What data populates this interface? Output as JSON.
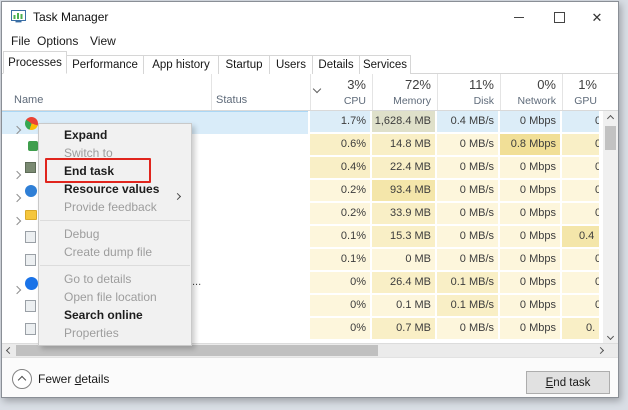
{
  "window": {
    "title": "Task Manager",
    "controls": {
      "minimize": "minimize",
      "maximize": "maximize",
      "close": "close"
    }
  },
  "menubar": {
    "items": [
      "File",
      "Options",
      "View"
    ]
  },
  "tabs": {
    "active": "Processes",
    "items": [
      "Processes",
      "Performance",
      "App history",
      "Startup",
      "Users",
      "Details",
      "Services"
    ]
  },
  "table": {
    "name_header": "Name",
    "status_header": "Status",
    "columns": [
      {
        "pct": "3%",
        "label": "CPU"
      },
      {
        "pct": "72%",
        "label": "Memory"
      },
      {
        "pct": "11%",
        "label": "Disk"
      },
      {
        "pct": "0%",
        "label": "Network"
      },
      {
        "pct": "1%",
        "label": "GPU"
      }
    ],
    "rows": [
      {
        "selected": true,
        "chevron": true,
        "icon": "chrome",
        "cpu": "1.7%",
        "mem": "1,628.4 MB",
        "disk": "0.4 MB/s",
        "net": "0 Mbps",
        "gpu": "0",
        "heat": [
          "hs",
          "hsm",
          "hs",
          "hs",
          "hs"
        ],
        "gpu_clip": "far"
      },
      {
        "selected": false,
        "chevron": false,
        "icon": "green-app",
        "cpu": "0.6%",
        "mem": "14.8 MB",
        "disk": "0 MB/s",
        "net": "0.8 Mbps",
        "gpu": "0",
        "heat": [
          "h1",
          "h1",
          "h0",
          "h3",
          "h1"
        ],
        "gpu_clip": "far"
      },
      {
        "selected": false,
        "chevron": true,
        "icon": "gray-green-app",
        "cpu": "0.4%",
        "mem": "22.4 MB",
        "disk": "0 MB/s",
        "net": "0 Mbps",
        "gpu": "0",
        "heat": [
          "h1",
          "h1",
          "h0",
          "h0",
          "h0"
        ],
        "gpu_clip": "far"
      },
      {
        "selected": false,
        "chevron": true,
        "icon": "blue-app",
        "cpu": "0.2%",
        "mem": "93.4 MB",
        "disk": "0 MB/s",
        "net": "0 Mbps",
        "gpu": "0",
        "heat": [
          "h0",
          "h2",
          "h0",
          "h0",
          "h0"
        ],
        "gpu_clip": "far"
      },
      {
        "selected": false,
        "chevron": true,
        "icon": "yellow-folder",
        "cpu": "0.2%",
        "mem": "33.9 MB",
        "disk": "0 MB/s",
        "net": "0 Mbps",
        "gpu": "0",
        "heat": [
          "h0",
          "h1",
          "h0",
          "h0",
          "h0"
        ],
        "gpu_clip": "far"
      },
      {
        "selected": false,
        "chevron": false,
        "icon": "gray-app",
        "cpu": "0.1%",
        "mem": "15.3 MB",
        "disk": "0 MB/s",
        "net": "0 Mbps",
        "gpu": "0.4",
        "heat": [
          "h0",
          "h1",
          "h0",
          "h0",
          "h2"
        ],
        "gpu_clip": "near"
      },
      {
        "selected": false,
        "chevron": false,
        "icon": "gray-app",
        "cpu": "0.1%",
        "mem": "0 MB",
        "disk": "0 MB/s",
        "net": "0 Mbps",
        "gpu": "0",
        "heat": [
          "h0",
          "h0",
          "h0",
          "h0",
          "h0"
        ],
        "gpu_clip": "far"
      },
      {
        "selected": false,
        "chevron": true,
        "icon": "blue-circle-app",
        "cpu": "0%",
        "mem": "26.4 MB",
        "disk": "0.1 MB/s",
        "net": "0 Mbps",
        "gpu": "0",
        "heat": [
          "h0",
          "h1",
          "h1",
          "h0",
          "h0"
        ],
        "gpu_clip": "far",
        "name_fragment": "..."
      },
      {
        "selected": false,
        "chevron": false,
        "icon": "gray-app",
        "cpu": "0%",
        "mem": "0.1 MB",
        "disk": "0.1 MB/s",
        "net": "0 Mbps",
        "gpu": "0",
        "heat": [
          "h0",
          "h0",
          "h1",
          "h0",
          "h0"
        ],
        "gpu_clip": "far"
      },
      {
        "selected": false,
        "chevron": false,
        "icon": "gray-app",
        "cpu": "0%",
        "mem": "0.7 MB",
        "disk": "0 MB/s",
        "net": "0 Mbps",
        "gpu": "0.",
        "heat": [
          "h0",
          "h1",
          "h0",
          "h0",
          "h1"
        ],
        "gpu_clip": "mid"
      }
    ]
  },
  "context_menu": {
    "items": [
      {
        "label": "Expand",
        "enabled": true,
        "bold": true
      },
      {
        "label": "Switch to",
        "enabled": false
      },
      {
        "label": "End task",
        "enabled": true,
        "bold": true,
        "highlighted": true
      },
      {
        "label": "Resource values",
        "enabled": true,
        "bold": true,
        "submenu": true
      },
      {
        "label": "Provide feedback",
        "enabled": false
      },
      {
        "separator": true
      },
      {
        "label": "Debug",
        "enabled": false
      },
      {
        "label": "Create dump file",
        "enabled": false
      },
      {
        "separator": true
      },
      {
        "label": "Go to details",
        "enabled": false
      },
      {
        "label": "Open file location",
        "enabled": false
      },
      {
        "label": "Search online",
        "enabled": true,
        "bold": true
      },
      {
        "label": "Properties",
        "enabled": false
      }
    ]
  },
  "footer": {
    "collapse_label": {
      "pre": "Fewer ",
      "underlined": "d",
      "post": "etails"
    },
    "end_task_button": {
      "underlined": "E",
      "post": "nd task"
    }
  },
  "colors": {
    "highlight_box_red": "#e0251d",
    "selected_row_blue": "#d9ecf9",
    "heat_light": "#fdf6dc",
    "heat_medium": "#f9efc6",
    "heat_strong": "#f4e6aa",
    "heat_strongest": "#f1df97"
  }
}
